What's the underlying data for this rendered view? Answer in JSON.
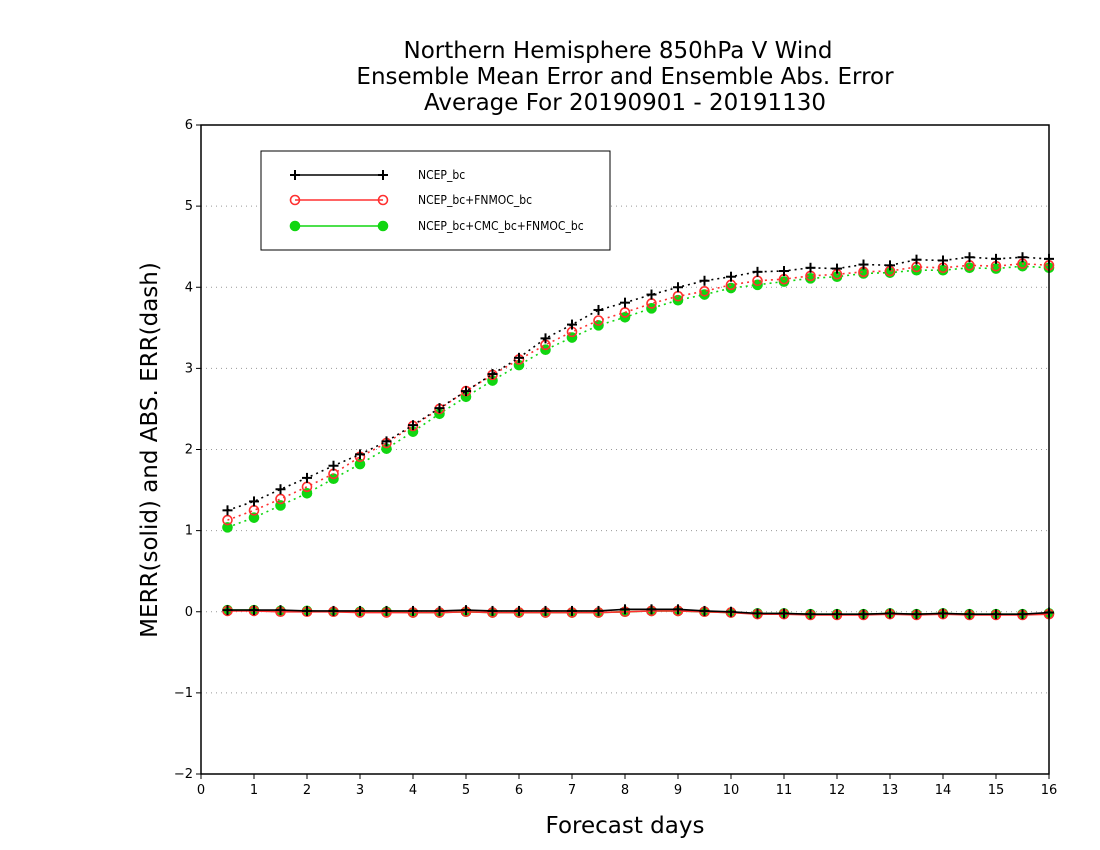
{
  "chart_data": {
    "type": "line",
    "title": [
      "Northern Hemisphere 850hPa V Wind",
      "Ensemble Mean Error and Ensemble Abs. Error",
      "Average For 20190901 - 20191130"
    ],
    "xlabel": "Forecast days",
    "ylabel": "MERR(solid) and ABS. ERR(dash)",
    "xlim": [
      0,
      16
    ],
    "ylim": [
      -2,
      6
    ],
    "xticks": [
      "0",
      "1",
      "2",
      "3",
      "4",
      "5",
      "6",
      "7",
      "8",
      "9",
      "10",
      "11",
      "12",
      "13",
      "14",
      "15",
      "16"
    ],
    "yticks": [
      "-2",
      "-1",
      "0",
      "1",
      "2",
      "3",
      "4",
      "5",
      "6"
    ],
    "grid": "horizontal dotted",
    "legend_position": "top-left",
    "x": [
      0.5,
      1,
      1.5,
      2,
      2.5,
      3,
      3.5,
      4,
      4.5,
      5,
      5.5,
      6,
      6.5,
      7,
      7.5,
      8,
      8.5,
      9,
      9.5,
      10,
      10.5,
      11,
      11.5,
      12,
      12.5,
      13,
      13.5,
      14,
      14.5,
      15,
      15.5,
      16
    ],
    "series": [
      {
        "name": "NCEP_bc",
        "color": "#000000",
        "marker": "plus",
        "merr": [
          0.02,
          0.02,
          0.02,
          0.01,
          0.01,
          0.01,
          0.01,
          0.01,
          0.01,
          0.02,
          0.01,
          0.01,
          0.01,
          0.01,
          0.01,
          0.03,
          0.03,
          0.03,
          0.01,
          0.0,
          -0.02,
          -0.02,
          -0.03,
          -0.03,
          -0.03,
          -0.02,
          -0.03,
          -0.02,
          -0.03,
          -0.03,
          -0.03,
          -0.01
        ],
        "abs_err": [
          1.25,
          1.36,
          1.51,
          1.65,
          1.8,
          1.94,
          2.1,
          2.3,
          2.51,
          2.72,
          2.93,
          3.13,
          3.37,
          3.54,
          3.72,
          3.81,
          3.91,
          4.0,
          4.08,
          4.13,
          4.19,
          4.2,
          4.24,
          4.23,
          4.28,
          4.27,
          4.34,
          4.33,
          4.37,
          4.35,
          4.37,
          4.35
        ]
      },
      {
        "name": "NCEP_bc+FNMOC_bc",
        "color": "#ff3030",
        "marker": "open-circle",
        "merr": [
          0.01,
          0.01,
          0.0,
          0.0,
          0.0,
          -0.01,
          -0.01,
          -0.01,
          -0.01,
          0.0,
          -0.01,
          -0.01,
          -0.01,
          -0.01,
          -0.01,
          0.0,
          0.01,
          0.01,
          0.0,
          -0.01,
          -0.03,
          -0.03,
          -0.04,
          -0.04,
          -0.04,
          -0.03,
          -0.04,
          -0.03,
          -0.04,
          -0.04,
          -0.04,
          -0.03
        ],
        "abs_err": [
          1.13,
          1.25,
          1.39,
          1.54,
          1.7,
          1.91,
          2.08,
          2.29,
          2.5,
          2.72,
          2.92,
          3.11,
          3.29,
          3.45,
          3.59,
          3.69,
          3.8,
          3.89,
          3.95,
          4.03,
          4.08,
          4.1,
          4.14,
          4.16,
          4.19,
          4.2,
          4.25,
          4.24,
          4.27,
          4.26,
          4.29,
          4.27
        ]
      },
      {
        "name": "NCEP_bc+CMC_bc+FNMOC_bc",
        "color": "#11d611",
        "marker": "filled-circle",
        "merr": [
          0.02,
          0.02,
          0.01,
          0.01,
          0.0,
          0.0,
          0.0,
          -0.01,
          -0.01,
          0.0,
          -0.01,
          -0.01,
          -0.01,
          -0.01,
          -0.01,
          0.0,
          0.01,
          0.01,
          0.0,
          -0.01,
          -0.02,
          -0.02,
          -0.03,
          -0.03,
          -0.03,
          -0.02,
          -0.03,
          -0.02,
          -0.03,
          -0.03,
          -0.03,
          -0.02
        ],
        "abs_err": [
          1.04,
          1.16,
          1.31,
          1.46,
          1.64,
          1.82,
          2.01,
          2.22,
          2.44,
          2.65,
          2.85,
          3.04,
          3.23,
          3.38,
          3.53,
          3.63,
          3.74,
          3.84,
          3.91,
          3.99,
          4.03,
          4.07,
          4.11,
          4.13,
          4.17,
          4.18,
          4.21,
          4.21,
          4.24,
          4.23,
          4.26,
          4.24
        ]
      }
    ]
  }
}
